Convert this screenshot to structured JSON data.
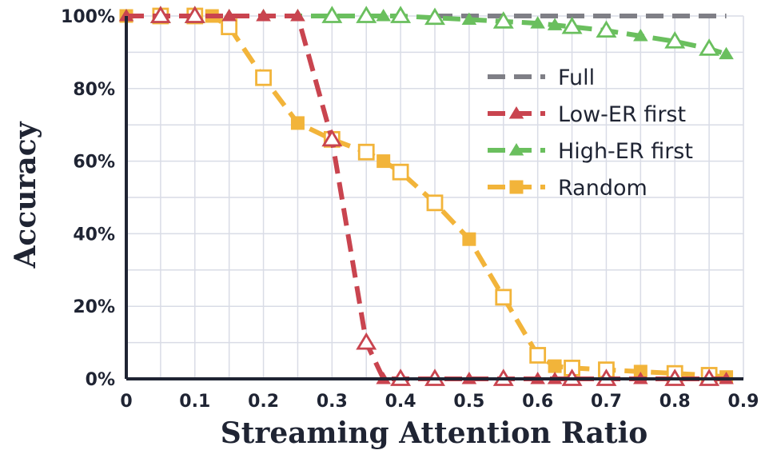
{
  "chart_data": {
    "type": "line",
    "title": "",
    "xlabel": "Streaming Attention Ratio",
    "ylabel": "Accuracy",
    "xlim": [
      0,
      0.9
    ],
    "ylim": [
      0,
      100
    ],
    "x_ticks": [
      "0",
      "0.1",
      "0.2",
      "0.3",
      "0.4",
      "0.5",
      "0.6",
      "0.7",
      "0.8",
      "0.9"
    ],
    "y_ticks": [
      "0%",
      "20%",
      "40%",
      "60%",
      "80%",
      "100%"
    ],
    "grid": true,
    "legend_position": "right",
    "series": [
      {
        "name": "Full",
        "color": "#7f7f86",
        "dash": "dashed",
        "marker": "none",
        "x": [
          0.45,
          0.875
        ],
        "y": [
          100,
          100
        ]
      },
      {
        "name": "Low-ER first",
        "color": "#c9444f",
        "dash": "dashed",
        "marker": "triangle",
        "x": [
          0,
          0.05,
          0.1,
          0.15,
          0.2,
          0.25,
          0.3,
          0.35,
          0.375,
          0.4,
          0.45,
          0.5,
          0.55,
          0.6,
          0.625,
          0.65,
          0.7,
          0.75,
          0.8,
          0.85,
          0.875
        ],
        "y": [
          100,
          100,
          100,
          100,
          100,
          100,
          66,
          10,
          0,
          0,
          0,
          0,
          0,
          0,
          0,
          0,
          0,
          0,
          0,
          0,
          0
        ],
        "hollow": [
          false,
          true,
          true,
          false,
          false,
          false,
          true,
          true,
          false,
          true,
          true,
          false,
          true,
          false,
          false,
          true,
          true,
          false,
          true,
          true,
          false
        ]
      },
      {
        "name": "High-ER first",
        "color": "#6abf5e",
        "dash": "dashed",
        "marker": "triangle",
        "x": [
          0,
          0.05,
          0.1,
          0.15,
          0.2,
          0.25,
          0.3,
          0.35,
          0.375,
          0.4,
          0.45,
          0.5,
          0.55,
          0.6,
          0.625,
          0.65,
          0.7,
          0.75,
          0.8,
          0.85,
          0.875
        ],
        "y": [
          100,
          100,
          100,
          100,
          100,
          100,
          100,
          100,
          100,
          100,
          99.5,
          99,
          98.5,
          98,
          97.5,
          97,
          96,
          94.5,
          93,
          91,
          89.5
        ],
        "hollow": [
          false,
          true,
          true,
          false,
          false,
          false,
          true,
          true,
          false,
          true,
          true,
          false,
          true,
          false,
          false,
          true,
          true,
          false,
          true,
          true,
          false
        ]
      },
      {
        "name": "Random",
        "color": "#f2b43a",
        "dash": "dashed",
        "marker": "square",
        "x": [
          0,
          0.05,
          0.1,
          0.125,
          0.15,
          0.2,
          0.25,
          0.3,
          0.35,
          0.375,
          0.4,
          0.45,
          0.5,
          0.55,
          0.6,
          0.625,
          0.65,
          0.7,
          0.75,
          0.8,
          0.85,
          0.875
        ],
        "y": [
          100,
          100,
          100,
          100,
          97,
          83,
          70.5,
          66,
          62.5,
          60,
          57,
          48.5,
          38.5,
          22.5,
          6.5,
          3.5,
          3,
          2.5,
          2,
          1.5,
          1,
          0.5
        ],
        "hollow": [
          false,
          true,
          true,
          false,
          true,
          true,
          false,
          true,
          true,
          false,
          true,
          true,
          false,
          true,
          true,
          false,
          true,
          true,
          false,
          true,
          true,
          false
        ]
      }
    ]
  }
}
